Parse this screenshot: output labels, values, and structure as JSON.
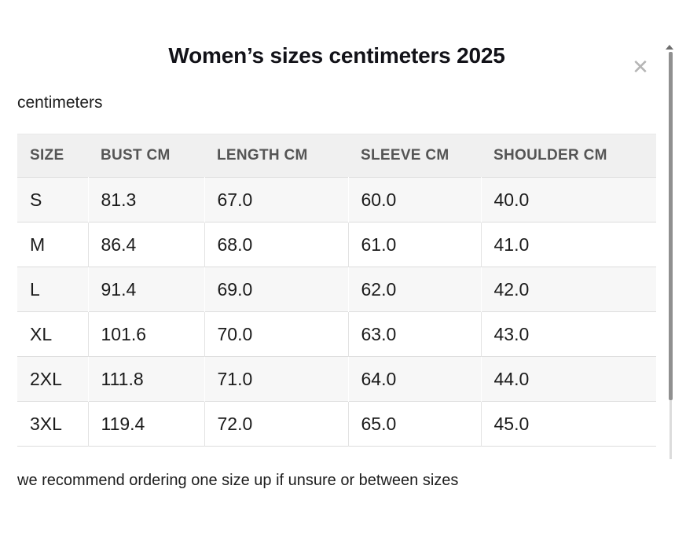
{
  "modal": {
    "title": "Women’s sizes centimeters 2025",
    "unit_label": "centimeters",
    "footer_note": "we recommend ordering one size up if unsure or between sizes",
    "close_glyph": "✕"
  },
  "table": {
    "columns": [
      "SIZE",
      "BUST CM",
      "LENGTH CM",
      "SLEEVE CM",
      "SHOULDER CM"
    ],
    "rows": [
      [
        "S",
        "81.3",
        "67.0",
        "60.0",
        "40.0"
      ],
      [
        "M",
        "86.4",
        "68.0",
        "61.0",
        "41.0"
      ],
      [
        "L",
        "91.4",
        "69.0",
        "62.0",
        "42.0"
      ],
      [
        "XL",
        "101.6",
        "70.0",
        "63.0",
        "43.0"
      ],
      [
        "2XL",
        "111.8",
        "71.0",
        "64.0",
        "44.0"
      ],
      [
        "3XL",
        "119.4",
        "72.0",
        "65.0",
        "45.0"
      ]
    ]
  },
  "colors": {
    "title-text": "#121218",
    "body-text": "#1b1b1b",
    "header-text": "#555555",
    "header-bg": "#f0f0f0",
    "stripe-bg": "#f7f7f7",
    "border": "#dddddd",
    "divider": "#e3e3e3",
    "close-icon": "#b5b5b5",
    "thumb": "#909090",
    "track": "#dcdcdc"
  }
}
